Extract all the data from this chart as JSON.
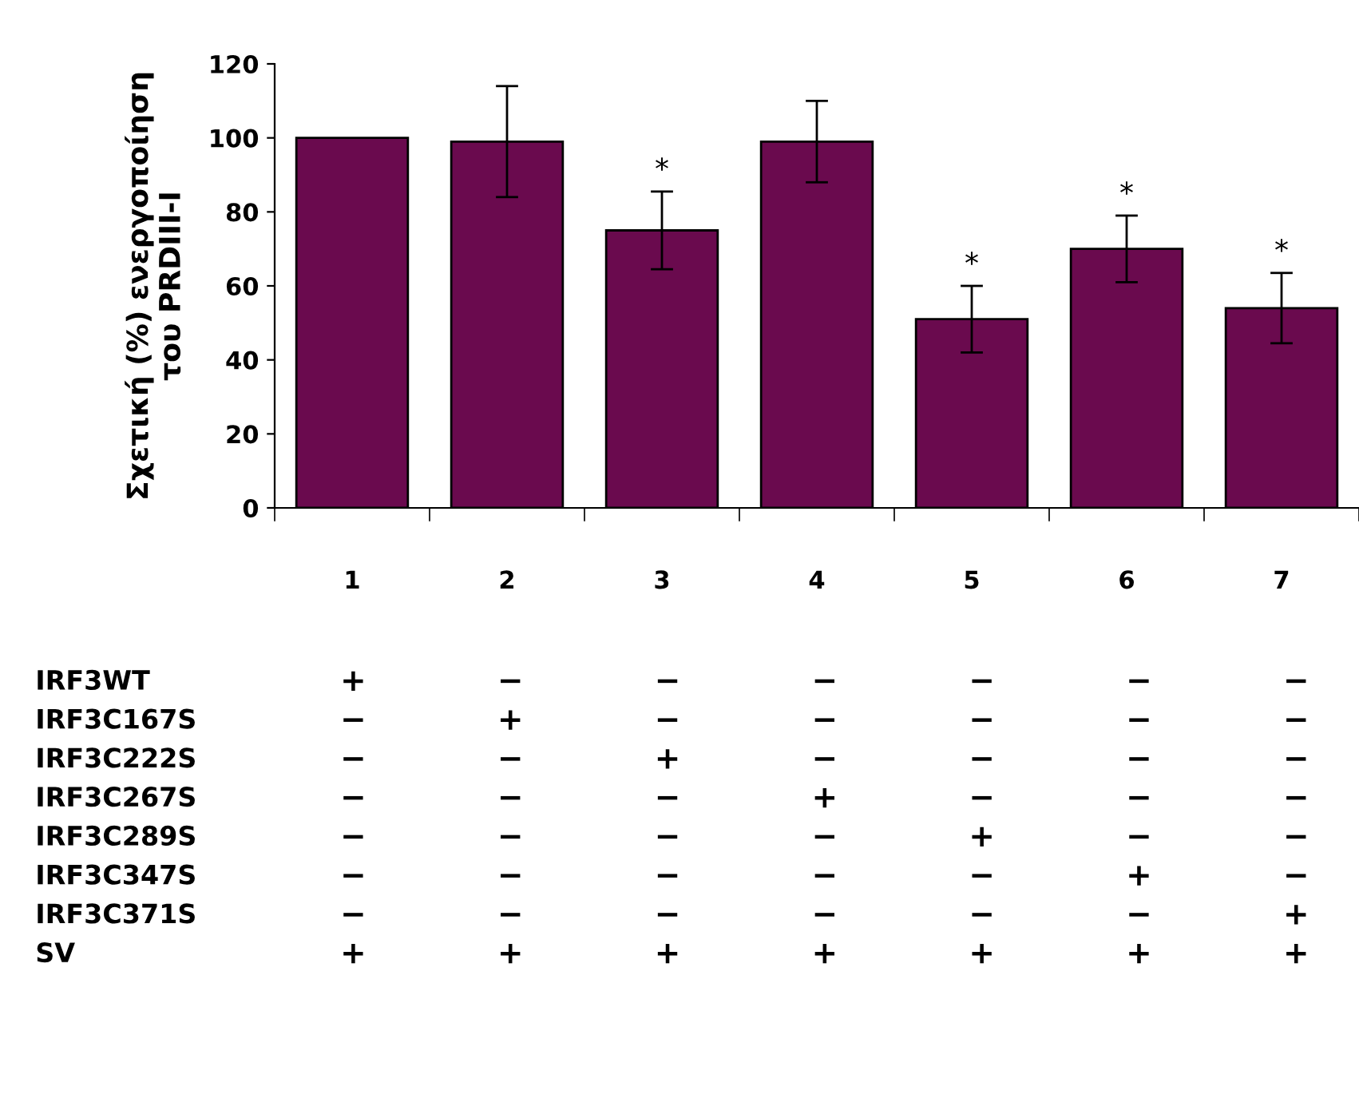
{
  "chart_data": [
    {
      "type": "bar",
      "ylabel": "Σχετική (%) ενεργοποίηση\nτου PRDIII-I",
      "categories": [
        "1",
        "2",
        "3",
        "4",
        "5",
        "6",
        "7"
      ],
      "values": [
        100,
        99,
        75,
        99,
        51,
        70,
        54
      ],
      "errors": [
        null,
        15,
        10.5,
        11,
        9,
        9,
        9.5
      ],
      "color": "#6a0a4e",
      "ylim": [
        0,
        120
      ],
      "yticks": [
        0,
        20,
        40,
        60,
        80,
        100,
        120
      ],
      "grid": false,
      "legend": false,
      "annotations": [
        {
          "text": "*",
          "x": "3",
          "y": 85.5
        },
        {
          "text": "*",
          "x": "5",
          "y": 60
        },
        {
          "text": "*",
          "x": "6",
          "y": 79
        },
        {
          "text": "*",
          "x": "7",
          "y": 63.5
        }
      ]
    },
    {
      "type": "other",
      "categories": [
        null,
        null,
        null,
        null,
        null,
        null,
        null
      ],
      "y_categories": [
        "IRF3WT",
        "IRF3C167S",
        "IRF3C222S",
        "IRF3C267S",
        "IRF3C289S",
        "IRF3C347S",
        "IRF3C371S",
        "SV"
      ],
      "cell_labels": [
        [
          "+",
          "−",
          "−",
          "−",
          "−",
          "−",
          "−"
        ],
        [
          "−",
          "+",
          "−",
          "−",
          "−",
          "−",
          "−"
        ],
        [
          "−",
          "−",
          "+",
          "−",
          "−",
          "−",
          "−"
        ],
        [
          "−",
          "−",
          "−",
          "+",
          "−",
          "−",
          "−"
        ],
        [
          "−",
          "−",
          "−",
          "−",
          "+",
          "−",
          "−"
        ],
        [
          "−",
          "−",
          "−",
          "−",
          "−",
          "+",
          "−"
        ],
        [
          "−",
          "−",
          "−",
          "−",
          "−",
          "−",
          "+"
        ],
        [
          "+",
          "+",
          "+",
          "+",
          "+",
          "+",
          "+"
        ]
      ]
    }
  ]
}
